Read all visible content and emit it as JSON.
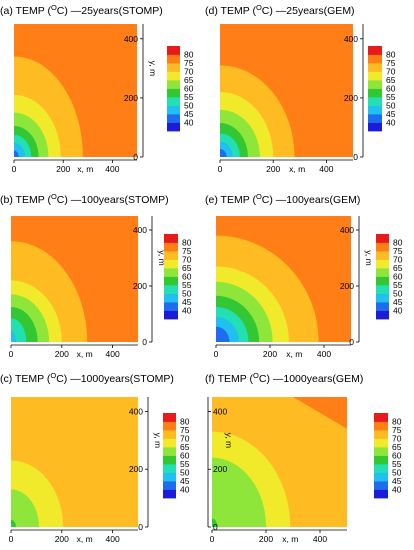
{
  "figure": {
    "colors": {
      "level_colors": [
        "#1c1cd8",
        "#1e6cf0",
        "#20c0f0",
        "#22e0b4",
        "#33c833",
        "#8ee63a",
        "#f0ea2a",
        "#ffbc22",
        "#ff7e16",
        "#e81a1a"
      ],
      "background": "#ffffff"
    }
  },
  "chart_data": [
    {
      "type": "contour",
      "panel": "(a)",
      "title_prefix": "(a) TEMP (",
      "title_superscript": "O",
      "title_suffix": "C) —25years(STOMP)",
      "colorbar_side": "right",
      "xlabel": "x, m",
      "ylabel": "y, m",
      "xlim": [
        0,
        500
      ],
      "ylim": [
        0,
        450
      ],
      "xticks": [
        0,
        200,
        400
      ],
      "yticks": [
        0,
        200,
        400
      ],
      "colorbar_levels": [
        40,
        45,
        50,
        55,
        60,
        65,
        70,
        75,
        80
      ],
      "background_value": 77,
      "contour_extents": [
        {
          "level": 75,
          "x_extent": 280,
          "y_extent": 340
        },
        {
          "level": 70,
          "x_extent": 190,
          "y_extent": 210
        },
        {
          "level": 65,
          "x_extent": 140,
          "y_extent": 150
        },
        {
          "level": 60,
          "x_extent": 100,
          "y_extent": 105
        },
        {
          "level": 55,
          "x_extent": 70,
          "y_extent": 75
        },
        {
          "level": 50,
          "x_extent": 45,
          "y_extent": 48
        },
        {
          "level": 45,
          "x_extent": 20,
          "y_extent": 22
        }
      ]
    },
    {
      "type": "contour",
      "panel": "(b)",
      "title_prefix": "(b) TEMP (",
      "title_superscript": "O",
      "title_suffix": "C) —100years(STOMP)",
      "colorbar_side": "right",
      "xlabel": "x, m",
      "ylabel": "y, m",
      "xlim": [
        0,
        500
      ],
      "ylim": [
        0,
        450
      ],
      "xticks": [
        0,
        200,
        400
      ],
      "yticks": [
        0,
        200,
        400
      ],
      "colorbar_levels": [
        40,
        45,
        50,
        55,
        60,
        65,
        70,
        75,
        80
      ],
      "background_value": 77,
      "contour_extents": [
        {
          "level": 75,
          "x_extent": 300,
          "y_extent": 360
        },
        {
          "level": 70,
          "x_extent": 200,
          "y_extent": 220
        },
        {
          "level": 65,
          "x_extent": 150,
          "y_extent": 170
        },
        {
          "level": 60,
          "x_extent": 105,
          "y_extent": 125
        },
        {
          "level": 55,
          "x_extent": 60,
          "y_extent": 85
        },
        {
          "level": 50,
          "x_extent": 20,
          "y_extent": 40
        }
      ]
    },
    {
      "type": "contour",
      "panel": "(c)",
      "title_prefix": "(c) TEMP (",
      "title_superscript": "O",
      "title_suffix": "C) —1000years(STOMP)",
      "colorbar_side": "right",
      "xlabel": "x, m",
      "ylabel": "y, m",
      "xlim": [
        0,
        500
      ],
      "ylim": [
        0,
        450
      ],
      "xticks": [
        0,
        200,
        400
      ],
      "yticks": [
        0,
        200,
        400
      ],
      "colorbar_levels": [
        40,
        45,
        50,
        55,
        60,
        65,
        70,
        75,
        80
      ],
      "background_value": 72,
      "contour_extents": [
        {
          "level": 70,
          "x_extent": 205,
          "y_extent": 230
        },
        {
          "level": 65,
          "x_extent": 110,
          "y_extent": 130
        },
        {
          "level": 60,
          "x_extent": 20,
          "y_extent": 25
        }
      ]
    },
    {
      "type": "contour",
      "panel": "(d)",
      "title_prefix": "(d) TEMP (",
      "title_superscript": "O",
      "title_suffix": "C) —25years(GEM)",
      "colorbar_side": "right",
      "xlabel": "x, m",
      "ylabel": "y, m",
      "xlim": [
        0,
        500
      ],
      "ylim": [
        0,
        450
      ],
      "xticks": [
        0,
        200,
        400
      ],
      "yticks": [
        0,
        200,
        400
      ],
      "colorbar_levels": [
        40,
        45,
        50,
        55,
        60,
        65,
        70,
        75,
        80
      ],
      "background_value": 77,
      "contour_extents": [
        {
          "level": 75,
          "x_extent": 280,
          "y_extent": 310
        },
        {
          "level": 70,
          "x_extent": 200,
          "y_extent": 220
        },
        {
          "level": 65,
          "x_extent": 150,
          "y_extent": 160
        },
        {
          "level": 60,
          "x_extent": 105,
          "y_extent": 115
        },
        {
          "level": 55,
          "x_extent": 75,
          "y_extent": 80
        },
        {
          "level": 50,
          "x_extent": 48,
          "y_extent": 52
        },
        {
          "level": 45,
          "x_extent": 25,
          "y_extent": 27
        }
      ]
    },
    {
      "type": "contour",
      "panel": "(e)",
      "title_prefix": "(e) TEMP (",
      "title_superscript": "O",
      "title_suffix": "C) —100years(GEM)",
      "colorbar_side": "right",
      "xlabel": "x, m",
      "ylabel": "y, m",
      "xlim": [
        0,
        500
      ],
      "ylim": [
        0,
        450
      ],
      "xticks": [
        0,
        200,
        400
      ],
      "yticks": [
        0,
        200,
        400
      ],
      "colorbar_levels": [
        40,
        45,
        50,
        55,
        60,
        65,
        70,
        75,
        80
      ],
      "background_value": 77,
      "contour_extents": [
        {
          "level": 75,
          "x_extent": 380,
          "y_extent": 380
        },
        {
          "level": 70,
          "x_extent": 270,
          "y_extent": 270
        },
        {
          "level": 65,
          "x_extent": 210,
          "y_extent": 215
        },
        {
          "level": 60,
          "x_extent": 160,
          "y_extent": 165
        },
        {
          "level": 55,
          "x_extent": 120,
          "y_extent": 125
        },
        {
          "level": 50,
          "x_extent": 85,
          "y_extent": 90
        },
        {
          "level": 45,
          "x_extent": 50,
          "y_extent": 55
        }
      ]
    },
    {
      "type": "contour",
      "panel": "(f)",
      "title_prefix": "(f) TEMP (",
      "title_superscript": "O",
      "title_suffix": "C) —1000years(GEM)",
      "colorbar_side": "left",
      "xlabel": "x, m",
      "ylabel": "y, m",
      "xlim": [
        0,
        500
      ],
      "ylim": [
        0,
        450
      ],
      "xticks": [
        0,
        200,
        400
      ],
      "yticks": [
        0,
        200,
        400
      ],
      "colorbar_levels": [
        40,
        45,
        50,
        55,
        60,
        65,
        70,
        75,
        80
      ],
      "background_value": 72,
      "upper_right_region": {
        "level": 75,
        "x_from": 300,
        "y_from": 340
      },
      "contour_extents": [
        {
          "level": 70,
          "x_extent": 290,
          "y_extent": 330
        },
        {
          "level": 65,
          "x_extent": 200,
          "y_extent": 240
        },
        {
          "level": 60,
          "x_extent": 20,
          "y_extent": 30
        }
      ]
    }
  ]
}
